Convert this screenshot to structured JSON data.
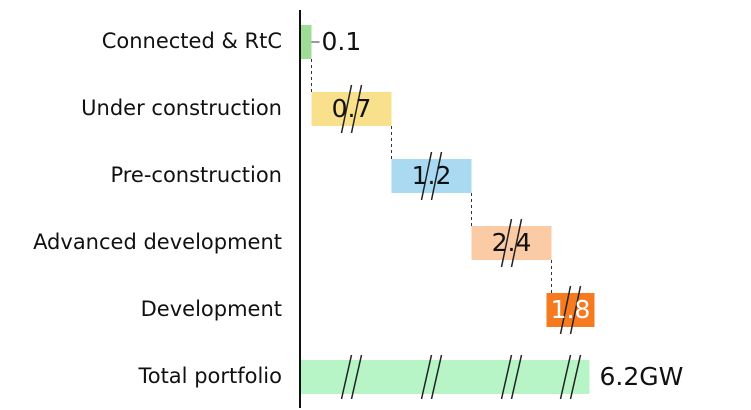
{
  "chart_data": {
    "type": "waterfall",
    "categories": [
      "Connected & RtC",
      "Under construction",
      "Pre-construction",
      "Advanced development",
      "Development",
      "Total portfolio"
    ],
    "values": [
      0.1,
      0.7,
      1.2,
      2.4,
      1.8,
      6.2
    ],
    "value_labels": [
      "0.1",
      "0.7",
      "1.2",
      "2.4",
      "1.8",
      "6.2GW"
    ],
    "colors": [
      "#9fdc98",
      "#f8e08c",
      "#a9daf2",
      "#fbcba6",
      "#f57a20",
      "#b8f5c6"
    ]
  }
}
